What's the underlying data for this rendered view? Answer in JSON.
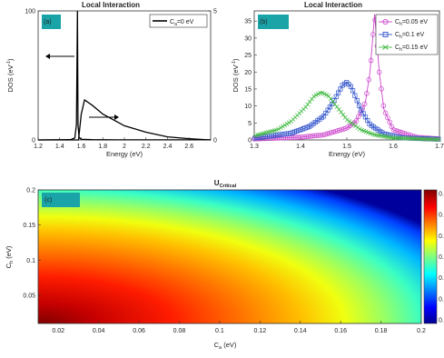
{
  "charts": {
    "a": {
      "panel_label": "(a)",
      "title": "Local Interaction",
      "xlabel": "Energy (eV)",
      "ylabel": "DOS (eV",
      "ylabel_sup": "-1",
      "ylabel_tail": ")",
      "legend": "C",
      "legend_sub": "a",
      "legend_tail": "=0 eV",
      "left_ticks": [
        "0",
        "100"
      ],
      "right_ticks": [
        "0",
        "5"
      ],
      "x_ticks": [
        "1.2",
        "1.4",
        "1.6",
        "1.8",
        "2",
        "2.2",
        "2.4",
        "2.6"
      ]
    },
    "b": {
      "panel_label": "(b)",
      "title": "Local Interaction",
      "xlabel": "Energy (eV)",
      "ylabel": "DOS (eV",
      "ylabel_sup": "-1",
      "ylabel_tail": ")",
      "y_ticks": [
        "0",
        "5",
        "10",
        "15",
        "20",
        "25",
        "30",
        "35"
      ],
      "x_ticks": [
        "1.3",
        "1.4",
        "1.5",
        "1.6",
        "1.7"
      ],
      "legend": [
        {
          "pre": "C",
          "sub": "h",
          "post": "=0.05  eV"
        },
        {
          "pre": "C",
          "sub": "h",
          "post": "=0.1   eV"
        },
        {
          "pre": "C",
          "sub": "h",
          "post": "=0.15  eV"
        }
      ]
    },
    "c": {
      "panel_label": "(c)",
      "title": "U",
      "title_sub": "Critical",
      "xlabel": "C",
      "xlabel_sub": "a",
      "xlabel_tail": " (eV)",
      "ylabel": "C",
      "ylabel_sub": "h",
      "ylabel_tail": " (eV)",
      "x_ticks": [
        "0.02",
        "0.04",
        "0.06",
        "0.08",
        "0.1",
        "0.12",
        "0.14",
        "0.16",
        "0.18",
        "0.2"
      ],
      "y_ticks": [
        "0.05",
        "0.1",
        "0.15",
        "0.2"
      ],
      "colorbar_ticks": [
        "0.",
        "0.",
        "0.",
        "0.",
        "0.",
        "0.",
        "0."
      ]
    }
  },
  "chart_data": [
    {
      "type": "line",
      "panel": "a",
      "title": "Local Interaction",
      "xlabel": "Energy (eV)",
      "ylabel": "DOS (eV-1)",
      "xlim": [
        1.2,
        2.8
      ],
      "ylim_left": [
        0,
        100
      ],
      "ylim_right": [
        0,
        5
      ],
      "series": [
        {
          "name": "Ca=0 eV",
          "axis": "left",
          "x": [
            1.2,
            1.5,
            1.54,
            1.555,
            1.565,
            1.57,
            1.58,
            1.6,
            1.7,
            2.0,
            2.8
          ],
          "y": [
            0,
            0.2,
            1.5,
            12,
            100,
            12,
            2,
            0.5,
            0.2,
            0.1,
            0.05
          ]
        },
        {
          "axis": "right",
          "x": [
            1.2,
            1.55,
            1.575,
            1.585,
            1.6,
            1.63,
            1.7,
            1.8,
            2.0,
            2.2,
            2.4,
            2.6,
            2.8
          ],
          "y": [
            0,
            0,
            0,
            0.4,
            1.0,
            1.55,
            1.35,
            1.0,
            0.55,
            0.3,
            0.12,
            0.05,
            0.0
          ]
        }
      ],
      "annotations": [
        "arrow pointing left to left axis",
        "arrow pointing right to right axis"
      ]
    },
    {
      "type": "line",
      "panel": "b",
      "title": "Local Interaction",
      "xlabel": "Energy (eV)",
      "ylabel": "DOS (eV-1)",
      "xlim": [
        1.3,
        1.7
      ],
      "ylim": [
        0,
        38
      ],
      "series": [
        {
          "name": "Ch=0.05 eV",
          "color": "#cc44cc",
          "marker": "circle",
          "x": [
            1.3,
            1.4,
            1.45,
            1.5,
            1.52,
            1.54,
            1.55,
            1.56,
            1.57,
            1.58,
            1.6,
            1.65,
            1.7
          ],
          "y": [
            0.3,
            0.8,
            1.5,
            3.5,
            5.5,
            11,
            20,
            37,
            20,
            9,
            3,
            0.8,
            0.3
          ]
        },
        {
          "name": "Ch=0.1 eV",
          "color": "#3355cc",
          "marker": "square",
          "x": [
            1.3,
            1.38,
            1.42,
            1.45,
            1.47,
            1.49,
            1.5,
            1.51,
            1.53,
            1.55,
            1.58,
            1.62,
            1.7
          ],
          "y": [
            0.5,
            2,
            4,
            7,
            11,
            16,
            17,
            15.5,
            9,
            4.5,
            1.8,
            0.6,
            0.2
          ]
        },
        {
          "name": "Ch=0.15 eV",
          "color": "#44bb44",
          "marker": "x",
          "x": [
            1.3,
            1.35,
            1.38,
            1.41,
            1.43,
            1.445,
            1.46,
            1.48,
            1.5,
            1.53,
            1.56,
            1.6,
            1.7
          ],
          "y": [
            1.2,
            3,
            5.5,
            9.5,
            13,
            14,
            13,
            9.5,
            6,
            3,
            1.5,
            0.6,
            0.1
          ]
        }
      ]
    },
    {
      "type": "heatmap",
      "panel": "c",
      "title": "U Critical",
      "xlabel": "Ca (eV)",
      "ylabel": "Ch (eV)",
      "xlim": [
        0.01,
        0.2
      ],
      "ylim": [
        0.01,
        0.2
      ],
      "colormap": "jet",
      "colorscale": "reversed (red = low Ca/Ch, blue = high Ca/Ch)",
      "trend": "decreasing with radial distance from origin"
    }
  ],
  "colors": {
    "panel_tag": "#1aa4a8",
    "ch005": "#cc44cc",
    "ch01": "#3355cc",
    "ch015": "#44bb44"
  }
}
